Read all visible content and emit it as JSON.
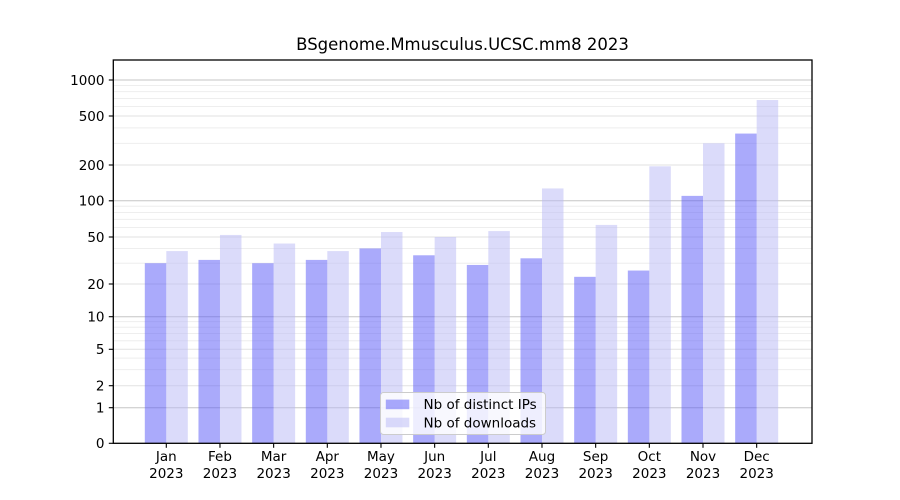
{
  "chart_data": {
    "type": "bar",
    "title": "BSgenome.Mmusculus.UCSC.mm8 2023",
    "months": [
      "Jan",
      "Feb",
      "Mar",
      "Apr",
      "May",
      "Jun",
      "Jul",
      "Aug",
      "Sep",
      "Oct",
      "Nov",
      "Dec"
    ],
    "year": "2023",
    "series": [
      {
        "name": "Nb of distinct IPs",
        "color": "#5555f7",
        "values": [
          30,
          32,
          30,
          32,
          40,
          35,
          29,
          33,
          23,
          26,
          110,
          360
        ]
      },
      {
        "name": "Nb of downloads",
        "color": "#b7b7f5",
        "values": [
          38,
          52,
          44,
          38,
          55,
          50,
          56,
          127,
          63,
          195,
          300,
          680
        ]
      }
    ],
    "bar_opacity": 0.5,
    "y_ticks": [
      0,
      1,
      2,
      5,
      10,
      20,
      50,
      100,
      200,
      500,
      1000
    ],
    "scale": "log-like",
    "ylim": [
      0,
      1000
    ],
    "xlabel": "",
    "ylabel": "",
    "grid": true,
    "legend_position": "bottom-center",
    "grid_colors": {
      "decade": "#c6c6c6",
      "labeled": "#e2e2e2",
      "minor": "#eeeeee"
    },
    "axis_color": "#000000",
    "legend_border_color": "#cccccc",
    "legend_bg": "rgba(255,255,255,0.8)"
  }
}
